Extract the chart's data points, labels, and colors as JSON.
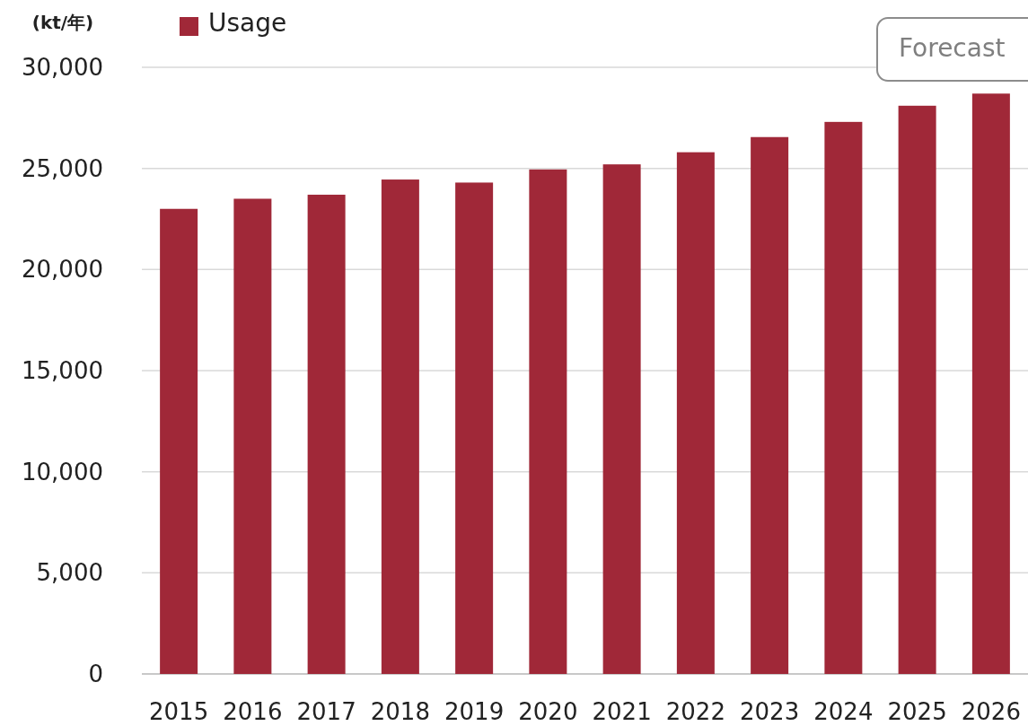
{
  "chart_data": {
    "type": "bar",
    "ylabel": "(kt/年)",
    "categories": [
      "2015",
      "2016",
      "2017",
      "2018",
      "2019",
      "2020",
      "2021",
      "2022",
      "2023",
      "2024",
      "2025",
      "2026"
    ],
    "series": [
      {
        "name": "Usage",
        "color": "#a02838",
        "values": [
          23000,
          23500,
          23700,
          24450,
          24300,
          24950,
          25200,
          25800,
          26550,
          27300,
          28100,
          28700
        ]
      }
    ],
    "ylim": [
      0,
      30000
    ],
    "yticks": [
      {
        "value": 0,
        "label": "0"
      },
      {
        "value": 5000,
        "label": "5,000"
      },
      {
        "value": 10000,
        "label": "10,000"
      },
      {
        "value": 15000,
        "label": "15,000"
      },
      {
        "value": 20000,
        "label": "20,000"
      },
      {
        "value": 25000,
        "label": "25,000"
      },
      {
        "value": 30000,
        "label": "30,000"
      }
    ],
    "grid": "y",
    "legend": "top left",
    "annotations": [
      "Forecast"
    ]
  }
}
